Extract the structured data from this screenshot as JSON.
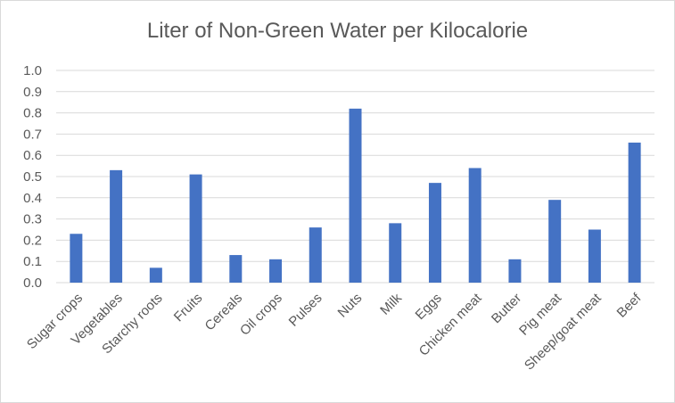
{
  "chart_data": {
    "type": "bar",
    "title": "Liter of Non-Green Water per Kilocalorie",
    "xlabel": "",
    "ylabel": "",
    "categories": [
      "Sugar crops",
      "Vegetables",
      "Starchy roots",
      "Fruits",
      "Cereals",
      "Oil crops",
      "Pulses",
      "Nuts",
      "Milk",
      "Eggs",
      "Chicken meat",
      "Butter",
      "Pig meat",
      "Sheep/goat meat",
      "Beef"
    ],
    "values": [
      0.23,
      0.53,
      0.07,
      0.51,
      0.13,
      0.11,
      0.26,
      0.82,
      0.28,
      0.47,
      0.54,
      0.11,
      0.39,
      0.25,
      0.66
    ],
    "ylim": [
      0,
      1.0
    ],
    "yticks": [
      "0.0",
      "0.1",
      "0.2",
      "0.3",
      "0.4",
      "0.5",
      "0.6",
      "0.7",
      "0.8",
      "0.9",
      "1.0"
    ],
    "grid": true,
    "legend": "none",
    "bar_color": "#4472c4",
    "gridline_color": "#d9d9d9",
    "text_color": "#595959"
  }
}
